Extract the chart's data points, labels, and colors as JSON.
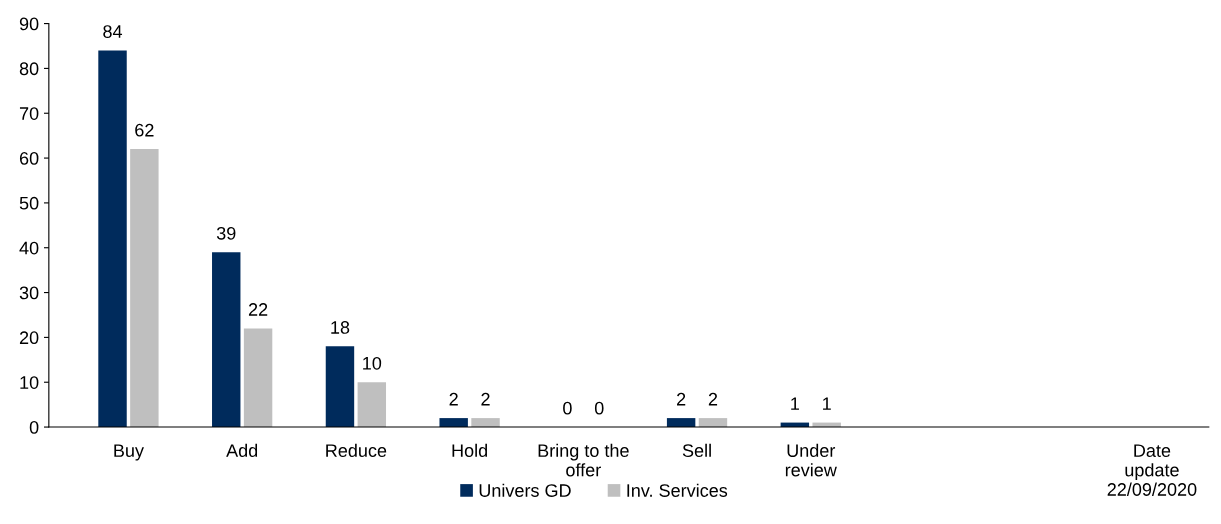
{
  "chart_data": {
    "type": "bar",
    "categories": [
      "Buy",
      "Add",
      "Reduce",
      "Hold",
      "Bring to the\noffer",
      "Sell",
      "Under\nreview",
      null,
      null,
      "Date\nupdate\n22/09/2020"
    ],
    "series": [
      {
        "name": "Univers GD",
        "color": "#002b5c",
        "values": [
          84,
          39,
          18,
          2,
          0,
          2,
          1,
          null,
          null,
          null
        ]
      },
      {
        "name": "Inv. Services",
        "color": "#bfbfbf",
        "values": [
          62,
          22,
          10,
          2,
          0,
          2,
          1,
          null,
          null,
          null
        ]
      }
    ],
    "ylim": [
      0,
      90
    ],
    "yticks": [
      0,
      10,
      20,
      30,
      40,
      50,
      60,
      70,
      80,
      90
    ],
    "data_labels": true,
    "grid": false,
    "legend": "bottom"
  }
}
